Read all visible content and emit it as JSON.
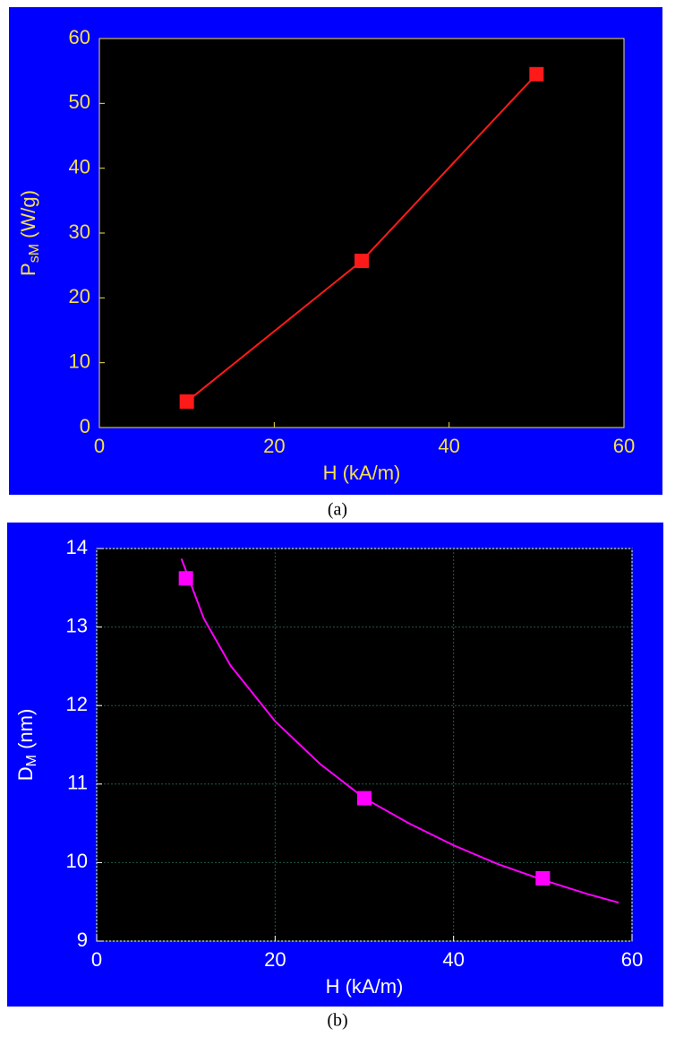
{
  "chart_data": [
    {
      "type": "line",
      "caption": "(a)",
      "ylabel": [
        "P",
        "sM",
        " (W/g)"
      ],
      "xlabel": "H (kA/m)",
      "panel_color": "#0000ff",
      "plot_color": "#000000",
      "text_color": "#f5e04a",
      "axis_color": "#f5e04a",
      "grid": false,
      "xlim": [
        0,
        60
      ],
      "xticks": [
        0,
        20,
        40,
        60
      ],
      "ylim": [
        0,
        60
      ],
      "yticks": [
        0,
        10,
        20,
        30,
        40,
        50,
        60
      ],
      "series": [
        {
          "color": "#ff1a1a",
          "marker": "square",
          "line": true,
          "x": [
            10,
            30,
            50
          ],
          "values": [
            4,
            25.7,
            54.5
          ]
        }
      ]
    },
    {
      "type": "line",
      "caption": "(b)",
      "ylabel": [
        "D",
        "M",
        " (nm)"
      ],
      "xlabel": "H (kA/m)",
      "panel_color": "#0000ff",
      "plot_color": "#000000",
      "text_color": "#ffffff",
      "axis_color": "#ffffff",
      "grid": true,
      "grid_color": "#1f5a4a",
      "xlim": [
        0,
        60
      ],
      "xticks": [
        0,
        20,
        40,
        60
      ],
      "ylim": [
        9,
        14
      ],
      "yticks": [
        9,
        10,
        11,
        12,
        13,
        14
      ],
      "series": [
        {
          "color": "#ff00ff",
          "marker": "none",
          "line": true,
          "x": [
            9.5,
            12,
            15,
            20,
            25,
            30,
            35,
            40,
            45,
            50,
            55,
            58.5
          ],
          "values": [
            13.87,
            13.11,
            12.51,
            11.8,
            11.26,
            10.82,
            10.5,
            10.22,
            9.98,
            9.78,
            9.6,
            9.49
          ]
        },
        {
          "color": "#ff00ff",
          "marker": "square",
          "line": false,
          "x": [
            10,
            30,
            50
          ],
          "values": [
            13.62,
            10.82,
            9.8
          ]
        }
      ]
    }
  ]
}
